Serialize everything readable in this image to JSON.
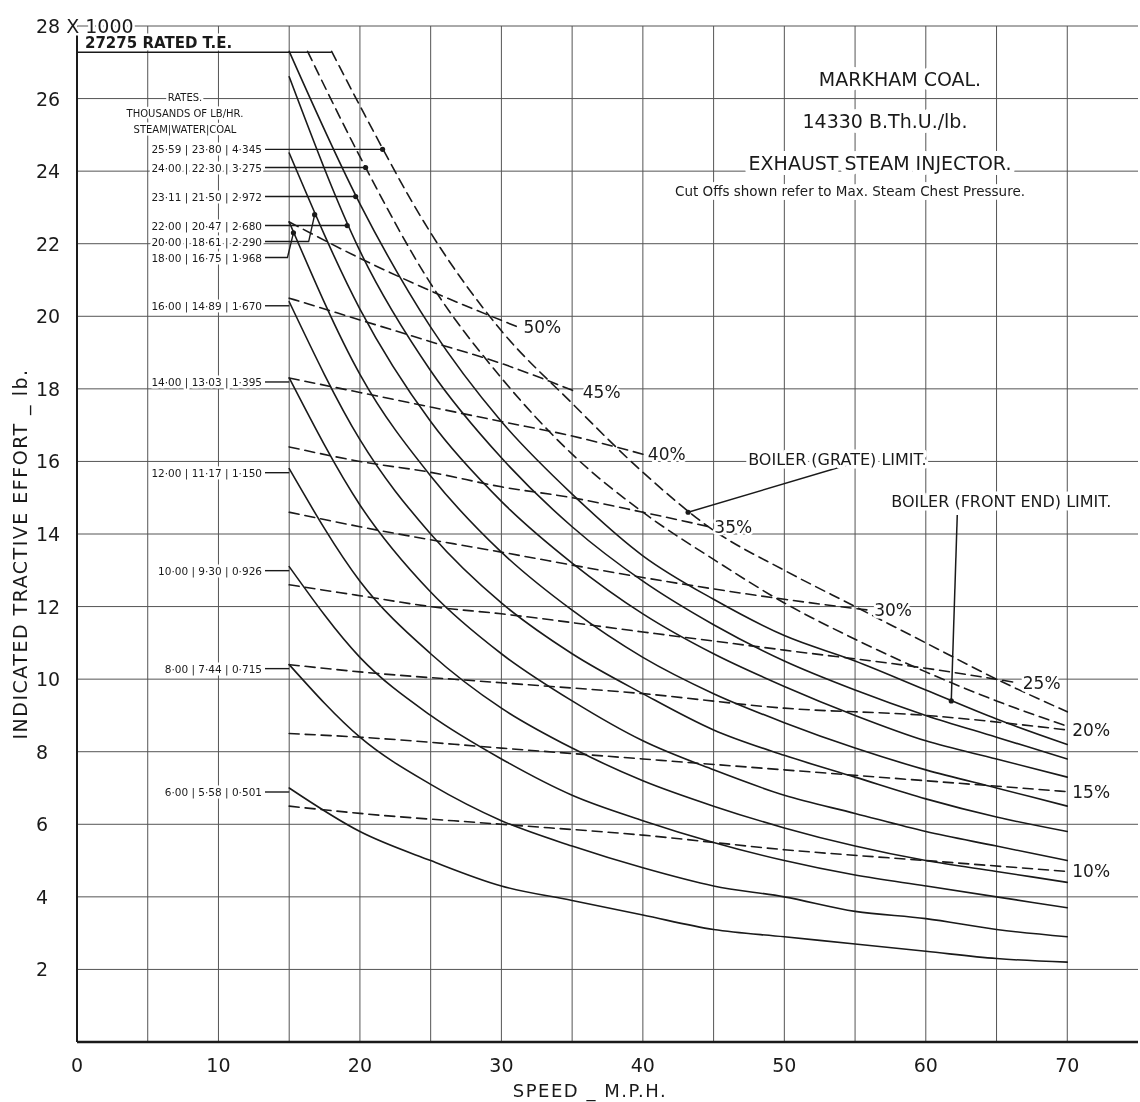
{
  "chart_data": {
    "type": "line",
    "title": "MARKHAM COAL.",
    "subtitle": "14330 B.Th.U./lb.",
    "xlabel": "SPEED _ M.P.H.",
    "ylabel": "INDICATED TRACTIVE EFFORT _ lb.",
    "xlim": [
      0,
      75
    ],
    "ylim": [
      0,
      28
    ],
    "xticks": [
      0,
      {
        "value": 5,
        "label": null
      },
      10,
      {
        "value": 15,
        "label": null
      },
      20,
      {
        "value": 25,
        "label": null
      },
      30,
      {
        "value": 35,
        "label": null
      },
      40,
      {
        "value": 45,
        "label": null
      },
      50,
      {
        "value": 55,
        "label": null
      },
      60,
      {
        "value": 65,
        "label": null
      },
      70
    ],
    "yticks": [
      2,
      4,
      6,
      8,
      10,
      12,
      14,
      16,
      18,
      20,
      22,
      24,
      26,
      {
        "value": 28,
        "label": "28 X 1000"
      }
    ],
    "grid": true,
    "legend": "left",
    "marker": "none",
    "ref_lines": [
      {
        "axis": "y",
        "value": 27.275,
        "label": "27275 RATED T.E."
      }
    ],
    "series": [
      {
        "color": "#1a1a1a",
        "line_style": "solid",
        "x": [
          15,
          20,
          25,
          30,
          35,
          40,
          45,
          50,
          55,
          60,
          65,
          70
        ],
        "values": [
          27.3,
          23.1,
          19.7,
          17.1,
          15.1,
          13.4,
          12.2,
          11.2,
          10.5,
          9.7,
          8.9,
          8.2
        ]
      },
      {
        "color": "#1a1a1a",
        "line_style": "solid",
        "x": [
          15,
          20,
          25,
          30,
          35,
          40,
          45,
          50,
          55,
          60,
          65,
          70
        ],
        "values": [
          26.6,
          21.8,
          18.5,
          16.1,
          14.2,
          12.7,
          11.5,
          10.5,
          9.7,
          9.0,
          8.4,
          7.8
        ]
      },
      {
        "color": "#1a1a1a",
        "line_style": "solid",
        "x": [
          15,
          20,
          25,
          30,
          35,
          40,
          45,
          50,
          55,
          60,
          65,
          70
        ],
        "values": [
          24.5,
          20.2,
          17.1,
          14.9,
          13.2,
          11.8,
          10.7,
          9.8,
          9.0,
          8.3,
          7.8,
          7.3
        ]
      },
      {
        "color": "#1a1a1a",
        "line_style": "solid",
        "x": [
          15,
          20,
          25,
          30,
          35,
          40,
          45,
          50,
          55,
          60,
          65,
          70
        ],
        "values": [
          22.6,
          18.4,
          15.6,
          13.5,
          11.9,
          10.6,
          9.6,
          8.8,
          8.1,
          7.5,
          7.0,
          6.5
        ]
      },
      {
        "name": "16·00 | 14·89 | 1·670",
        "color": "#1a1a1a",
        "line_style": "solid",
        "x": [
          15,
          20,
          25,
          30,
          35,
          40,
          45,
          50,
          55,
          60,
          65,
          70
        ],
        "values": [
          20.4,
          16.6,
          14.0,
          12.1,
          10.7,
          9.6,
          8.6,
          7.9,
          7.3,
          6.7,
          6.2,
          5.8
        ]
      },
      {
        "name": "14·00 | 13·03 | 1·395",
        "color": "#1a1a1a",
        "line_style": "solid",
        "x": [
          15,
          20,
          25,
          30,
          35,
          40,
          45,
          50,
          55,
          60,
          65,
          70
        ],
        "values": [
          18.3,
          14.8,
          12.4,
          10.7,
          9.4,
          8.3,
          7.5,
          6.8,
          6.3,
          5.8,
          5.4,
          5.0
        ]
      },
      {
        "name": "12·00 | 11·17 | 1·150",
        "color": "#1a1a1a",
        "line_style": "solid",
        "x": [
          15,
          20,
          25,
          30,
          35,
          40,
          45,
          50,
          55,
          60,
          65,
          70
        ],
        "values": [
          15.8,
          12.7,
          10.7,
          9.2,
          8.1,
          7.2,
          6.5,
          5.9,
          5.4,
          5.0,
          4.7,
          4.4
        ]
      },
      {
        "name": "10·00 | 9·30 | 0·926",
        "color": "#1a1a1a",
        "line_style": "solid",
        "x": [
          15,
          20,
          25,
          30,
          35,
          40,
          45,
          50,
          55,
          60,
          65,
          70
        ],
        "values": [
          13.1,
          10.6,
          9.0,
          7.8,
          6.8,
          6.1,
          5.5,
          5.0,
          4.6,
          4.3,
          4.0,
          3.7
        ]
      },
      {
        "name": "8·00 | 7·44 | 0·715",
        "color": "#1a1a1a",
        "line_style": "solid",
        "x": [
          15,
          20,
          25,
          30,
          35,
          40,
          45,
          50,
          55,
          60,
          65,
          70
        ],
        "values": [
          10.4,
          8.4,
          7.1,
          6.1,
          5.4,
          4.8,
          4.3,
          4.0,
          3.6,
          3.4,
          3.1,
          2.9
        ]
      },
      {
        "name": "6·00 | 5·58 | 0·501",
        "color": "#1a1a1a",
        "line_style": "solid",
        "x": [
          15,
          20,
          25,
          30,
          35,
          40,
          45,
          50,
          55,
          60,
          65,
          70
        ],
        "values": [
          7.0,
          5.8,
          5.0,
          4.3,
          3.9,
          3.5,
          3.1,
          2.9,
          2.7,
          2.5,
          2.3,
          2.2
        ]
      },
      {
        "color": "#1a1a1a",
        "line_style": "dashed",
        "x": [
          16.3,
          20,
          25,
          30,
          35,
          40,
          45,
          50,
          55,
          60,
          65,
          70
        ],
        "values": [
          27.3,
          24.4,
          20.9,
          18.3,
          16.2,
          14.6,
          13.3,
          12.1,
          11.1,
          10.2,
          9.4,
          8.7
        ]
      },
      {
        "color": "#1a1a1a",
        "line_style": "dashed",
        "x": [
          18,
          20,
          25,
          30,
          35,
          40,
          45,
          50,
          55,
          60,
          65,
          70
        ],
        "values": [
          27.3,
          25.8,
          22.3,
          19.6,
          17.6,
          15.7,
          14.1,
          13.0,
          12.0,
          11.0,
          10.0,
          9.1
        ]
      },
      {
        "name": "50%",
        "color": "#1a1a1a",
        "line_style": "dashed",
        "x": [
          15,
          20,
          25,
          31.2
        ],
        "values": [
          22.6,
          21.6,
          20.7,
          19.7
        ]
      },
      {
        "name": "45%",
        "color": "#1a1a1a",
        "line_style": "dashed",
        "x": [
          15,
          20,
          25,
          30,
          35.4
        ],
        "values": [
          20.5,
          19.9,
          19.3,
          18.7,
          17.9
        ]
      },
      {
        "name": "40%",
        "color": "#1a1a1a",
        "line_style": "dashed",
        "x": [
          15,
          20,
          25,
          30,
          35,
          40
        ],
        "values": [
          18.3,
          17.9,
          17.5,
          17.1,
          16.7,
          16.2
        ]
      },
      {
        "name": "35%",
        "color": "#1a1a1a",
        "line_style": "dashed",
        "x": [
          15,
          20,
          25,
          30,
          35,
          40,
          44.7
        ],
        "values": [
          16.4,
          16.0,
          15.7,
          15.3,
          15.0,
          14.6,
          14.2
        ]
      },
      {
        "name": "30%",
        "color": "#1a1a1a",
        "line_style": "dashed",
        "x": [
          15,
          20,
          30,
          40,
          50,
          56
        ],
        "values": [
          14.6,
          14.2,
          13.5,
          12.8,
          12.2,
          11.9
        ]
      },
      {
        "name": "25%",
        "color": "#1a1a1a",
        "line_style": "dashed",
        "x": [
          15,
          20,
          25,
          30,
          40,
          50,
          60,
          66.5
        ],
        "values": [
          12.6,
          12.3,
          12.0,
          11.8,
          11.3,
          10.8,
          10.3,
          9.9
        ]
      },
      {
        "name": "20%",
        "color": "#1a1a1a",
        "line_style": "dashed",
        "x": [
          15,
          20,
          30,
          40,
          50,
          60,
          70
        ],
        "values": [
          10.4,
          10.2,
          9.9,
          9.6,
          9.2,
          9.0,
          8.6
        ]
      },
      {
        "name": "15%",
        "color": "#1a1a1a",
        "line_style": "dashed",
        "x": [
          15,
          20,
          30,
          40,
          50,
          60,
          70
        ],
        "values": [
          8.5,
          8.4,
          8.1,
          7.8,
          7.5,
          7.2,
          6.9
        ]
      },
      {
        "name": "10%",
        "color": "#1a1a1a",
        "line_style": "dashed",
        "x": [
          15,
          20,
          30,
          40,
          50,
          60,
          70
        ],
        "values": [
          6.5,
          6.3,
          6.0,
          5.7,
          5.3,
          5.0,
          4.7
        ]
      }
    ],
    "annotations": [
      "EXHAUST STEAM INJECTOR.",
      "Cut Offs shown refer to Max. Steam Chest Pressure.",
      "RATES.",
      "THOUSANDS OF LB/HR.",
      "STEAM|WATER|COAL",
      {
        "text": "BOILER (GRATE) LIMIT.",
        "x": 43.2,
        "y": 14.6
      },
      {
        "text": "BOILER (FRONT END) LIMIT.",
        "x": 61.8,
        "y": 9.4
      },
      {
        "text": "25·59 | 23·80 | 4·345",
        "x": 21.6,
        "y": 24.6
      },
      {
        "text": "24·00 | 22·30 | 3·275",
        "x": 20.4,
        "y": 24.1
      },
      {
        "text": "23·11 | 21·50 | 2·972",
        "x": 19.7,
        "y": 23.3
      },
      {
        "text": "22·00 | 20·47 | 2·680",
        "x": 19.1,
        "y": 22.5
      },
      {
        "text": "20·00 | 18·61 | 2·290",
        "x": 16.8,
        "y": 22.8
      },
      {
        "text": "18·00 | 16·75 | 1·968",
        "x": 15.3,
        "y": 22.3
      }
    ]
  }
}
